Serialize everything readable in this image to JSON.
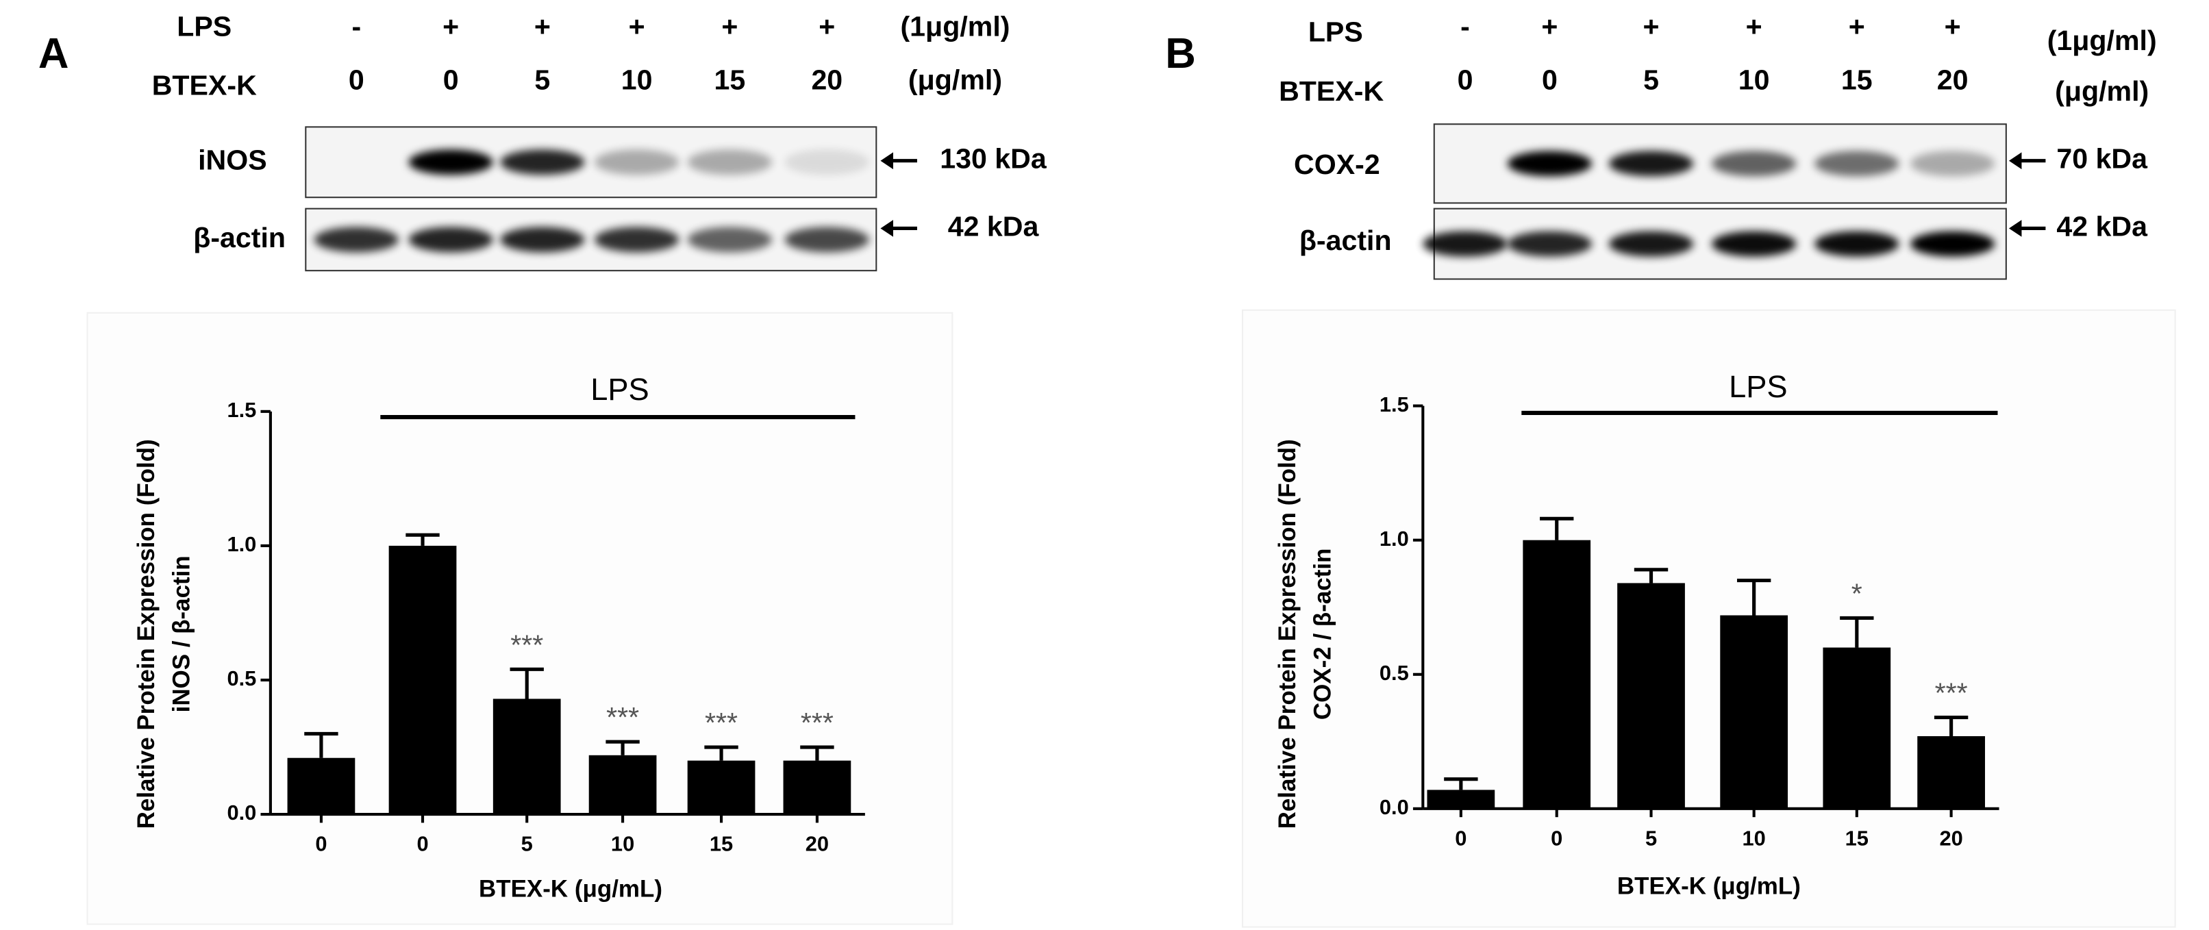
{
  "blots": [
    {
      "panel": "A",
      "lps_label": "LPS",
      "lps": [
        "-",
        "+",
        "+",
        "+",
        "+",
        "+"
      ],
      "lps_unit": "(1μg/ml)",
      "dose_label": "BTEX-K",
      "doses": [
        "0",
        "0",
        "5",
        "10",
        "15",
        "20"
      ],
      "dose_unit": "(μg/ml)",
      "bands": [
        {
          "name": "iNOS",
          "size": "130 kDa"
        },
        {
          "name": "β-actin",
          "size": "42 kDa"
        }
      ]
    },
    {
      "panel": "B",
      "lps_label": "LPS",
      "lps": [
        "-",
        "+",
        "+",
        "+",
        "+",
        "+"
      ],
      "lps_unit": "(1μg/ml)",
      "dose_label": "BTEX-K",
      "doses": [
        "0",
        "0",
        "5",
        "10",
        "15",
        "20"
      ],
      "dose_unit": "(μg/ml)",
      "bands": [
        {
          "name": "COX-2",
          "size": "70 kDa"
        },
        {
          "name": "β-actin",
          "size": "42 kDa"
        }
      ]
    }
  ],
  "chart_data": [
    {
      "type": "bar",
      "annotation": "LPS",
      "xlabel": "BTEX-K (μg/mL)",
      "ylabel": [
        "Relative Protein Expression (Fold)",
        "iNOS / β-actin"
      ],
      "categories": [
        "0",
        "0",
        "5",
        "10",
        "15",
        "20"
      ],
      "values": [
        0.21,
        1.0,
        0.43,
        0.22,
        0.2,
        0.2
      ],
      "errors": [
        0.09,
        0.04,
        0.11,
        0.05,
        0.05,
        0.05
      ],
      "significance": [
        null,
        null,
        "***",
        "***",
        "***",
        "***"
      ],
      "color": "#000000",
      "ylim": [
        0,
        1.5
      ],
      "yticks": [
        {
          "value": 0,
          "label": "0.0"
        },
        0.5,
        {
          "value": 1,
          "label": "1.0"
        },
        1.5
      ]
    },
    {
      "type": "bar",
      "annotation": "LPS",
      "xlabel": "BTEX-K (μg/mL)",
      "ylabel": [
        "Relative Protein Expression (Fold)",
        "COX-2 / β-actin"
      ],
      "categories": [
        "0",
        "0",
        "5",
        "10",
        "15",
        "20"
      ],
      "values": [
        0.07,
        1.0,
        0.84,
        0.72,
        0.6,
        0.27
      ],
      "errors": [
        0.04,
        0.08,
        0.05,
        0.13,
        0.11,
        0.07
      ],
      "significance": [
        null,
        null,
        null,
        null,
        "*",
        "***"
      ],
      "color": "#000000",
      "ylim": [
        0,
        1.5
      ],
      "yticks": [
        {
          "value": 0,
          "label": "0.0"
        },
        0.5,
        {
          "value": 1,
          "label": "1.0"
        },
        1.5
      ]
    }
  ]
}
